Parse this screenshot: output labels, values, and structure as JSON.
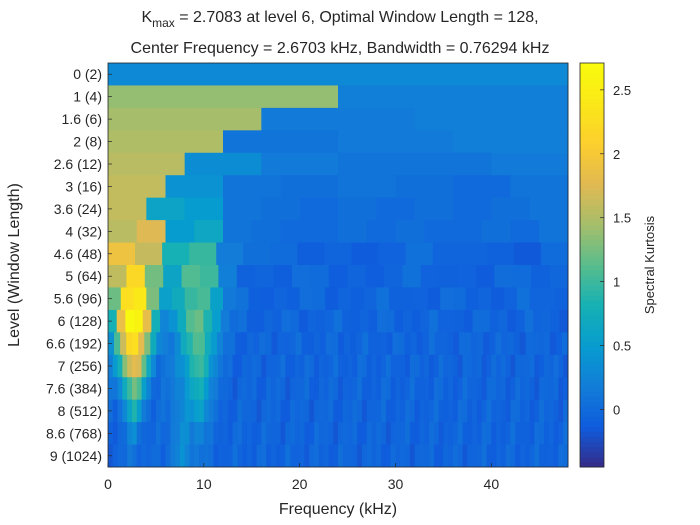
{
  "figure": {
    "title": {
      "line1_prefix": "K",
      "line1_sub": "max",
      "line1_rest": " = 2.7083 at level 6, Optimal Window Length = 128,",
      "line2": "Center Frequency = 2.6703 kHz, Bandwidth = 0.76294 kHz"
    }
  },
  "chart_data": {
    "type": "heatmap",
    "title": "Kmax = 2.7083 at level 6, Optimal Window Length = 128, Center Frequency = 2.6703 kHz, Bandwidth = 0.76294 kHz",
    "xlabel": "Frequency (kHz)",
    "ylabel": "Level (Window Length)",
    "xlim": [
      0,
      48
    ],
    "x_ticks": [
      0,
      10,
      20,
      30,
      40
    ],
    "y_tick_labels": [
      "0   (2)",
      "1   (4)",
      "1.6   (6)",
      "2   (8)",
      "2.6  (12)",
      "3  (16)",
      "3.6  (24)",
      "4  (32)",
      "4.6  (48)",
      "5  (64)",
      "5.6  (96)",
      "6 (128)",
      "6.6 (192)",
      "7 (256)",
      "7.6 (384)",
      "8 (512)",
      "8.6 (768)",
      "9 (1024)"
    ],
    "colorbar": {
      "label": "Spectral Kurtosis",
      "range": [
        -0.45,
        2.71
      ],
      "ticks": [
        0,
        0.5,
        1,
        1.5,
        2,
        2.5
      ],
      "colormap": "parula"
    },
    "kmax": 2.7083,
    "kmax_level": "6",
    "kmax_window_length": 128,
    "kmax_center_frequency_khz": 2.6703,
    "kmax_bandwidth_khz": 0.76294,
    "levels": [
      {
        "label": "0   (2)",
        "segments": [
          [
            0,
            48,
            0.3
          ]
        ]
      },
      {
        "label": "1   (4)",
        "segments": [
          [
            0,
            24,
            1.38
          ],
          [
            24,
            48,
            0.2
          ]
        ]
      },
      {
        "label": "1.6   (6)",
        "segments": [
          [
            0,
            16,
            1.45
          ],
          [
            16,
            32,
            0.15
          ],
          [
            32,
            48,
            0.2
          ]
        ]
      },
      {
        "label": "2   (8)",
        "segments": [
          [
            0,
            12,
            1.5
          ],
          [
            12,
            24,
            0.1
          ],
          [
            24,
            36,
            0.15
          ],
          [
            36,
            48,
            0.2
          ]
        ]
      },
      {
        "label": "2.6  (12)",
        "segments": [
          [
            0,
            8,
            1.55
          ],
          [
            8,
            16,
            0.35
          ],
          [
            16,
            24,
            0.15
          ],
          [
            24,
            32,
            0.1
          ],
          [
            32,
            40,
            0.1
          ],
          [
            40,
            48,
            0.15
          ]
        ]
      },
      {
        "label": "3  (16)",
        "segments": [
          [
            0,
            6,
            1.6
          ],
          [
            6,
            12,
            0.4
          ],
          [
            12,
            18,
            0.1
          ],
          [
            18,
            24,
            0.05
          ],
          [
            24,
            30,
            0.1
          ],
          [
            30,
            36,
            0.05
          ],
          [
            36,
            42,
            0.0
          ],
          [
            42,
            48,
            0.1
          ]
        ]
      },
      {
        "label": "3.6  (24)",
        "segments": [
          [
            0,
            4,
            1.6
          ],
          [
            4,
            8,
            0.6
          ],
          [
            8,
            12,
            0.5
          ],
          [
            12,
            16,
            0.1
          ],
          [
            16,
            20,
            0.05
          ],
          [
            20,
            24,
            0.0
          ],
          [
            24,
            28,
            0.05
          ],
          [
            28,
            32,
            0.0
          ],
          [
            32,
            36,
            0.05
          ],
          [
            36,
            40,
            0.0
          ],
          [
            40,
            44,
            0.05
          ],
          [
            44,
            48,
            0.1
          ]
        ]
      },
      {
        "label": "4  (32)",
        "segments": [
          [
            0,
            3,
            1.55
          ],
          [
            3,
            6,
            1.75
          ],
          [
            6,
            9,
            0.5
          ],
          [
            9,
            12,
            0.65
          ],
          [
            12,
            15,
            0.1
          ],
          [
            15,
            18,
            0.05
          ],
          [
            18,
            21,
            0.0
          ],
          [
            21,
            24,
            0.0
          ],
          [
            24,
            27,
            0.05
          ],
          [
            27,
            30,
            0.0
          ],
          [
            30,
            33,
            0.05
          ],
          [
            33,
            36,
            0.0
          ],
          [
            36,
            39,
            0.0
          ],
          [
            39,
            42,
            0.05
          ],
          [
            42,
            45,
            0.0
          ],
          [
            45,
            48,
            0.1
          ]
        ]
      }
    ],
    "fine_levels": [
      {
        "label": "4.6  (48)",
        "peak_value": 2.15,
        "peak_center_khz": 2.67,
        "secondary_value": 0.95,
        "secondary_center_khz": 9.7
      },
      {
        "label": "5  (64)",
        "peak_value": 2.3,
        "peak_center_khz": 2.67,
        "secondary_value": 1.0,
        "secondary_center_khz": 9.7
      },
      {
        "label": "5.6  (96)",
        "peak_value": 2.55,
        "peak_center_khz": 2.67,
        "secondary_value": 1.05,
        "secondary_center_khz": 9.7
      },
      {
        "label": "6 (128)",
        "peak_value": 2.7083,
        "peak_center_khz": 2.6703,
        "secondary_value": 1.1,
        "secondary_center_khz": 9.7
      },
      {
        "label": "6.6 (192)",
        "peak_value": 2.3,
        "peak_center_khz": 2.67,
        "secondary_value": 1.0,
        "secondary_center_khz": 9.7
      },
      {
        "label": "7 (256)",
        "peak_value": 1.85,
        "peak_center_khz": 2.67,
        "secondary_value": 0.9,
        "secondary_center_khz": 9.7
      },
      {
        "label": "7.6 (384)",
        "peak_value": 1.2,
        "peak_center_khz": 2.67,
        "secondary_value": 0.7,
        "secondary_center_khz": 9.7
      },
      {
        "label": "8 (512)",
        "peak_value": 0.75,
        "peak_center_khz": 2.67,
        "secondary_value": 0.55,
        "secondary_center_khz": 9.7
      },
      {
        "label": "8.6 (768)",
        "peak_value": 0.3,
        "peak_center_khz": 2.67,
        "secondary_value": 0.25,
        "secondary_center_khz": 9.7
      },
      {
        "label": "9 (1024)",
        "peak_value": 0.1,
        "peak_center_khz": 2.67,
        "secondary_value": 0.05,
        "secondary_center_khz": 9.7
      }
    ],
    "background_value": -0.05,
    "grid": false
  }
}
